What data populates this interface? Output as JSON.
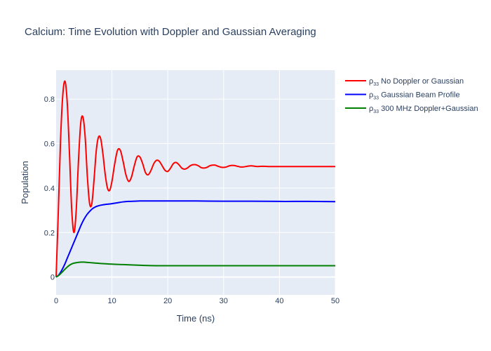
{
  "chart_data": {
    "type": "line",
    "title": "Calcium: Time Evolution with Doppler and Gaussian Averaging",
    "xlabel": "Time (ns)",
    "ylabel": "Population",
    "xlim": [
      0,
      50
    ],
    "ylim": [
      -0.08,
      0.93
    ],
    "xticks": [
      0,
      10,
      20,
      30,
      40,
      50
    ],
    "xtick_labels": [
      "0",
      "10",
      "20",
      "30",
      "40",
      "50"
    ],
    "yticks": [
      0,
      0.2,
      0.4,
      0.6,
      0.8
    ],
    "ytick_labels": [
      "0",
      "0.2",
      "0.4",
      "0.6",
      "0.8"
    ],
    "legend_position": "right",
    "series": [
      {
        "name": "ρ33 No Doppler or Gaussian",
        "label_prefix": "ρ",
        "label_sub": "33",
        "label_rest": "No Doppler or Gaussian",
        "color": "#ff0000",
        "x": [
          0,
          0.4,
          0.8,
          1.2,
          1.6,
          2.0,
          2.4,
          2.8,
          3.2,
          3.6,
          4.0,
          4.4,
          4.8,
          5.2,
          5.6,
          6.0,
          6.4,
          6.8,
          7.2,
          7.6,
          8.0,
          8.4,
          8.8,
          9.2,
          9.6,
          10.0,
          10.5,
          11.0,
          11.5,
          12.0,
          12.5,
          13.0,
          13.5,
          14.0,
          14.5,
          15.0,
          15.5,
          16.0,
          16.5,
          17.0,
          17.5,
          18.0,
          18.5,
          19.0,
          19.5,
          20.0,
          20.5,
          21.0,
          21.5,
          22.0,
          22.5,
          23.0,
          23.5,
          24.0,
          24.5,
          25.0,
          25.5,
          26.0,
          26.5,
          27.0,
          27.5,
          28.0,
          28.5,
          29.0,
          29.5,
          30.0,
          30.5,
          31.0,
          31.5,
          32.0,
          32.5,
          33.0,
          33.5,
          34.0,
          34.5,
          35.0,
          36.0,
          37.0,
          38.0,
          39.0,
          40.0,
          42.0,
          44.0,
          46.0,
          48.0,
          50.0
        ],
        "values": [
          0,
          0.3,
          0.62,
          0.82,
          0.88,
          0.78,
          0.55,
          0.3,
          0.2,
          0.3,
          0.52,
          0.69,
          0.72,
          0.63,
          0.45,
          0.33,
          0.33,
          0.44,
          0.57,
          0.63,
          0.62,
          0.55,
          0.46,
          0.4,
          0.39,
          0.43,
          0.51,
          0.57,
          0.57,
          0.52,
          0.46,
          0.43,
          0.45,
          0.5,
          0.54,
          0.54,
          0.51,
          0.47,
          0.46,
          0.48,
          0.51,
          0.525,
          0.52,
          0.5,
          0.48,
          0.475,
          0.49,
          0.51,
          0.515,
          0.505,
          0.49,
          0.485,
          0.49,
          0.5,
          0.505,
          0.505,
          0.5,
          0.492,
          0.49,
          0.493,
          0.5,
          0.503,
          0.503,
          0.498,
          0.494,
          0.493,
          0.495,
          0.5,
          0.502,
          0.501,
          0.498,
          0.495,
          0.495,
          0.497,
          0.499,
          0.5,
          0.497,
          0.498,
          0.497,
          0.497,
          0.497,
          0.497,
          0.497,
          0.497,
          0.497,
          0.497
        ]
      },
      {
        "name": "ρ33 Gaussian Beam Profile",
        "label_prefix": "ρ",
        "label_sub": "33",
        "label_rest": "Gaussian Beam Profile",
        "color": "#0000ff",
        "x": [
          0,
          0.5,
          1,
          1.5,
          2,
          2.5,
          3,
          3.5,
          4,
          4.5,
          5,
          5.5,
          6,
          6.5,
          7,
          7.5,
          8,
          9,
          10,
          11,
          12,
          13,
          14,
          15,
          16,
          18,
          20,
          25,
          30,
          35,
          40,
          45,
          50
        ],
        "values": [
          0,
          0.01,
          0.03,
          0.055,
          0.085,
          0.115,
          0.145,
          0.175,
          0.205,
          0.235,
          0.26,
          0.28,
          0.295,
          0.307,
          0.315,
          0.32,
          0.323,
          0.327,
          0.33,
          0.334,
          0.338,
          0.34,
          0.341,
          0.342,
          0.342,
          0.342,
          0.342,
          0.342,
          0.341,
          0.341,
          0.34,
          0.34,
          0.339
        ]
      },
      {
        "name": "ρ33 300 MHz Doppler+Gaussian",
        "label_prefix": "ρ",
        "label_sub": "33",
        "label_rest": "300 MHz Doppler+Gaussian",
        "color": "#008000",
        "x": [
          0,
          0.5,
          1,
          1.5,
          2,
          2.5,
          3,
          3.5,
          4,
          4.5,
          5,
          5.5,
          6,
          7,
          8,
          10,
          12,
          14,
          16,
          18,
          20,
          25,
          30,
          35,
          40,
          45,
          50
        ],
        "values": [
          0,
          0.008,
          0.02,
          0.033,
          0.045,
          0.055,
          0.061,
          0.064,
          0.066,
          0.067,
          0.067,
          0.066,
          0.065,
          0.063,
          0.061,
          0.058,
          0.056,
          0.054,
          0.052,
          0.051,
          0.051,
          0.051,
          0.051,
          0.051,
          0.051,
          0.051,
          0.051
        ]
      }
    ]
  }
}
